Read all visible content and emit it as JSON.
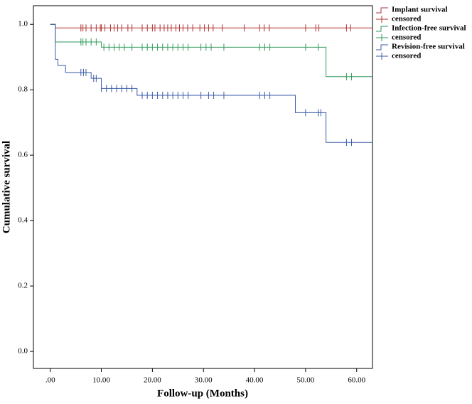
{
  "chart_data": {
    "type": "step",
    "x_label": "Follow-up (Months)",
    "y_label": "Cumulative survival",
    "xlim": [
      -3.3,
      63.1
    ],
    "ylim": [
      -0.052,
      1.057
    ],
    "xticks": [
      {
        "value": 0,
        "label": ".00"
      },
      {
        "value": 10,
        "label": "10.00"
      },
      {
        "value": 20,
        "label": "20.00"
      },
      {
        "value": 30,
        "label": "30.00"
      },
      {
        "value": 40,
        "label": "40.00"
      },
      {
        "value": 50,
        "label": "50.00"
      },
      {
        "value": 60,
        "label": "60.00"
      }
    ],
    "yticks": [
      {
        "value": 0,
        "label": "0.0"
      },
      0.2,
      0.4,
      0.6,
      0.8,
      {
        "value": 1,
        "label": "1.0"
      }
    ],
    "series": [
      {
        "name": "Implant survival",
        "type": "step",
        "color": "#b03030",
        "x": [
          0,
          1,
          63.1
        ],
        "values": [
          1,
          0.989,
          0.989
        ]
      },
      {
        "name": "censored",
        "type": "censor",
        "color": "#b03030",
        "x": [
          6,
          6.4,
          7,
          8,
          9,
          9.8,
          10,
          10.7,
          11.8,
          12.5,
          13.2,
          14,
          15.2,
          16,
          18,
          19,
          20,
          20.5,
          21.5,
          22.3,
          23,
          23.7,
          24.6,
          25.3,
          26,
          26.9,
          27.9,
          29.3,
          30.2,
          31,
          31.9,
          33.7,
          38,
          41,
          41.9,
          42.9,
          50,
          52,
          52.6,
          58,
          58.8
        ],
        "values": [
          0.989,
          0.989,
          0.989,
          0.989,
          0.989,
          0.989,
          0.989,
          0.989,
          0.989,
          0.989,
          0.989,
          0.989,
          0.989,
          0.989,
          0.989,
          0.989,
          0.989,
          0.989,
          0.989,
          0.989,
          0.989,
          0.989,
          0.989,
          0.989,
          0.989,
          0.989,
          0.989,
          0.989,
          0.989,
          0.989,
          0.989,
          0.989,
          0.989,
          0.989,
          0.989,
          0.989,
          0.989,
          0.989,
          0.989,
          0.989,
          0.989
        ]
      },
      {
        "name": "Infection-free survival",
        "type": "step",
        "color": "#2e9a5a",
        "x": [
          0,
          1,
          10,
          54,
          63.1
        ],
        "values": [
          1,
          0.946,
          0.93,
          0.84,
          0.84
        ]
      },
      {
        "name": "censored",
        "type": "censor",
        "color": "#2e9a5a",
        "x": [
          6,
          6.4,
          7,
          8,
          9,
          10.5,
          11.5,
          12.5,
          13.5,
          14.5,
          16,
          18,
          19,
          20,
          21,
          22,
          23,
          24,
          25,
          26,
          27,
          29.5,
          30.5,
          31.5,
          34,
          41,
          42,
          43,
          50,
          52.5,
          58,
          59
        ],
        "values": [
          0.946,
          0.946,
          0.946,
          0.946,
          0.946,
          0.93,
          0.93,
          0.93,
          0.93,
          0.93,
          0.93,
          0.93,
          0.93,
          0.93,
          0.93,
          0.93,
          0.93,
          0.93,
          0.93,
          0.93,
          0.93,
          0.93,
          0.93,
          0.93,
          0.93,
          0.93,
          0.93,
          0.93,
          0.93,
          0.93,
          0.84,
          0.84
        ]
      },
      {
        "name": "Revision-free survival",
        "type": "step",
        "color": "#3a5ba8",
        "x": [
          0,
          1,
          1.5,
          3,
          8,
          10,
          17,
          48,
          54,
          63.1
        ],
        "values": [
          1,
          0.893,
          0.874,
          0.853,
          0.835,
          0.804,
          0.783,
          0.73,
          0.639,
          0.639
        ]
      },
      {
        "name": "censored",
        "type": "censor",
        "color": "#3a5ba8",
        "x": [
          6,
          6.5,
          7,
          8.5,
          9,
          10,
          11,
          12,
          13,
          14,
          15,
          16,
          18,
          19,
          20,
          21,
          22,
          23,
          24,
          25,
          26,
          27,
          29.5,
          31,
          32,
          34,
          41,
          42,
          43,
          50,
          52.5,
          53,
          58,
          59
        ],
        "values": [
          0.853,
          0.853,
          0.853,
          0.835,
          0.835,
          0.804,
          0.804,
          0.804,
          0.804,
          0.804,
          0.804,
          0.804,
          0.783,
          0.783,
          0.783,
          0.783,
          0.783,
          0.783,
          0.783,
          0.783,
          0.783,
          0.783,
          0.783,
          0.783,
          0.783,
          0.783,
          0.783,
          0.783,
          0.783,
          0.73,
          0.73,
          0.73,
          0.639,
          0.639
        ]
      }
    ]
  }
}
